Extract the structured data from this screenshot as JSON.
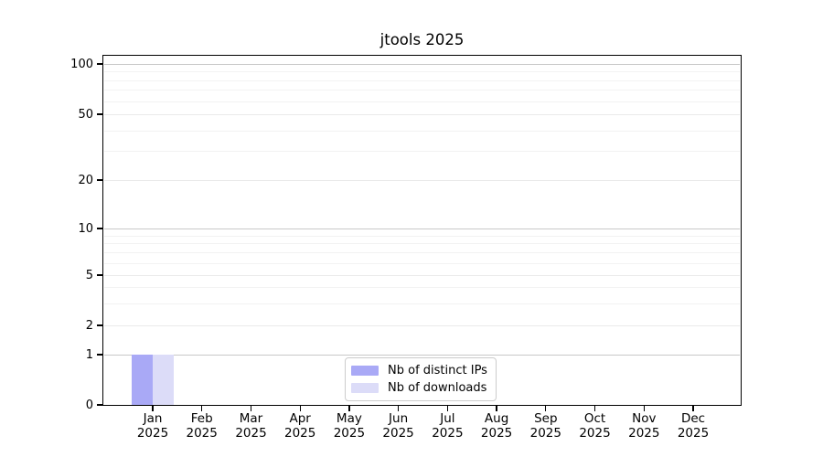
{
  "title": "jtools 2025",
  "chart_data": {
    "type": "bar",
    "title": "jtools 2025",
    "categories": [
      "Jan 2025",
      "Feb 2025",
      "Mar 2025",
      "Apr 2025",
      "May 2025",
      "Jun 2025",
      "Jul 2025",
      "Aug 2025",
      "Sep 2025",
      "Oct 2025",
      "Nov 2025",
      "Dec 2025"
    ],
    "series": [
      {
        "name": "Nb of distinct IPs",
        "color": "#a9a9f6",
        "values": [
          1,
          0,
          0,
          0,
          0,
          0,
          0,
          0,
          0,
          0,
          0,
          0
        ]
      },
      {
        "name": "Nb of downloads",
        "color": "#dcdcf8",
        "values": [
          1,
          0,
          0,
          0,
          0,
          0,
          0,
          0,
          0,
          0,
          0,
          0
        ]
      }
    ],
    "xlabel": "",
    "ylabel": "",
    "yscale": "log-like",
    "ylim": [
      0,
      100
    ],
    "y_ticks": [
      0,
      1,
      2,
      5,
      10,
      20,
      50,
      100
    ],
    "y_minor_gridlines": [
      90,
      80,
      70,
      60,
      40,
      30,
      9,
      8,
      7,
      6,
      4,
      3
    ],
    "grid": true,
    "legend_position": "lower center"
  },
  "legend": {
    "items": [
      {
        "label": "Nb of distinct IPs",
        "color": "#a9a9f6"
      },
      {
        "label": "Nb of downloads",
        "color": "#dcdcf8"
      }
    ]
  },
  "colors": {
    "background": "#ffffff",
    "axis": "#000000",
    "text": "#000000",
    "grid_power10": "#c8c8c8",
    "grid_mid": "#eaeaea",
    "grid_minor": "#f2f2f2",
    "legend_border": "#cccccc"
  }
}
